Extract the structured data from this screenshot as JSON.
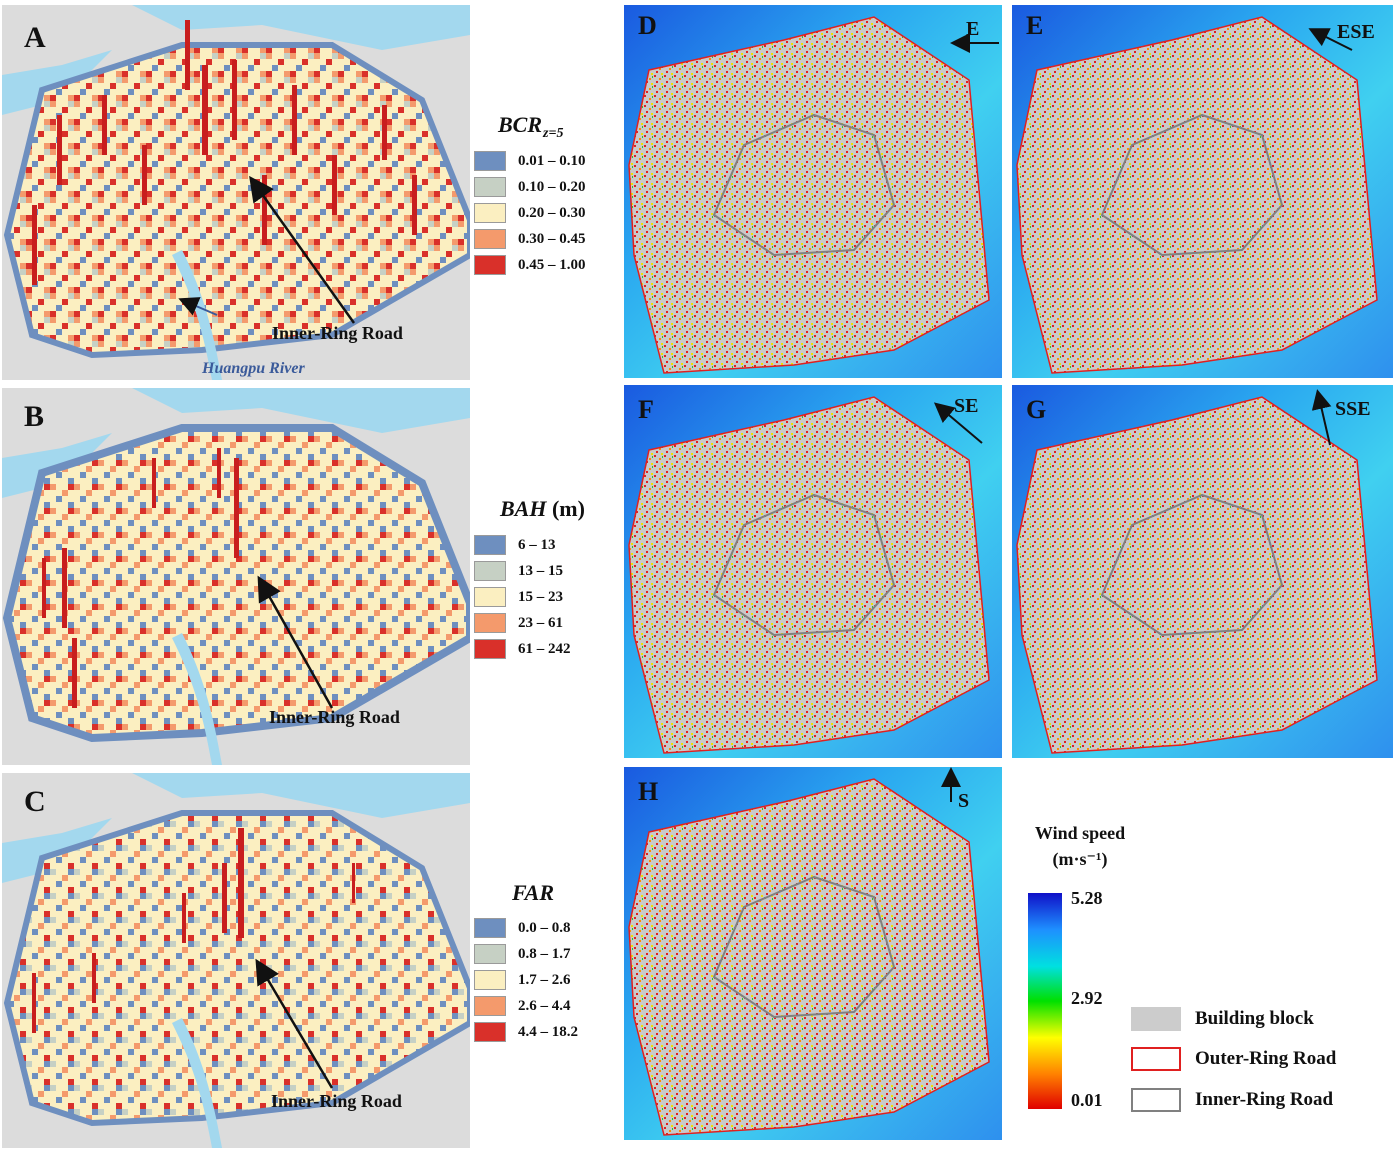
{
  "panels": {
    "A": {
      "letter": "A",
      "annotation": "Inner-Ring Road",
      "river": "Huangpu River"
    },
    "B": {
      "letter": "B",
      "annotation": "Inner-Ring Road"
    },
    "C": {
      "letter": "C",
      "annotation": "Inner-Ring Road"
    },
    "D": {
      "letter": "D",
      "direction": "E"
    },
    "E": {
      "letter": "E",
      "direction": "ESE"
    },
    "F": {
      "letter": "F",
      "direction": "SE"
    },
    "G": {
      "letter": "G",
      "direction": "SSE"
    },
    "H": {
      "letter": "H",
      "direction": "S"
    }
  },
  "legends": {
    "bcr": {
      "title": "BCR",
      "subscript": "z=5",
      "items": [
        {
          "label": "0.01 – 0.10",
          "color": "#6e8fbf"
        },
        {
          "label": "0.10 – 0.20",
          "color": "#c6d0c4"
        },
        {
          "label": "0.20 – 0.30",
          "color": "#fbefc1"
        },
        {
          "label": "0.30 – 0.45",
          "color": "#f49a6c"
        },
        {
          "label": "0.45 – 1.00",
          "color": "#d9302a"
        }
      ]
    },
    "bah": {
      "title": "BAH",
      "unit": "(m)",
      "items": [
        {
          "label": "6 – 13",
          "color": "#6e8fbf"
        },
        {
          "label": "13 – 15",
          "color": "#c6d0c4"
        },
        {
          "label": "15 – 23",
          "color": "#fbefc1"
        },
        {
          "label": "23 – 61",
          "color": "#f49a6c"
        },
        {
          "label": "61 – 242",
          "color": "#d9302a"
        }
      ]
    },
    "far": {
      "title": "FAR",
      "items": [
        {
          "label": "0.0 – 0.8",
          "color": "#6e8fbf"
        },
        {
          "label": "0.8 – 1.7",
          "color": "#c6d0c4"
        },
        {
          "label": "1.7 – 2.6",
          "color": "#fbefc1"
        },
        {
          "label": "2.6 – 4.4",
          "color": "#f49a6c"
        },
        {
          "label": "4.4 – 18.2",
          "color": "#d9302a"
        }
      ]
    }
  },
  "wind": {
    "title_line1": "Wind speed",
    "title_line2": "(m·s⁻¹)",
    "max_label": "5.28",
    "mid_label": "2.92",
    "min_label": "0.01",
    "gradient": [
      "#1010c8",
      "#1e90ff",
      "#00e0e0",
      "#00e000",
      "#ffff00",
      "#ff8000",
      "#e00000"
    ]
  },
  "key": [
    {
      "label": "Building block",
      "fill": "#cccccc",
      "stroke": "none"
    },
    {
      "label": "Outer-Ring Road",
      "fill": "#ffffff",
      "stroke": "#e02020"
    },
    {
      "label": "Inner-Ring Road",
      "fill": "#ffffff",
      "stroke": "#808080"
    }
  ]
}
